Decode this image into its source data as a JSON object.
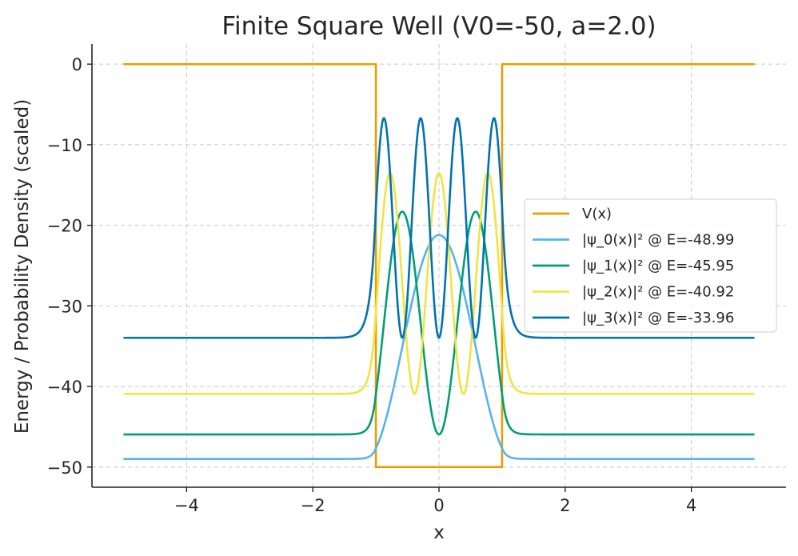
{
  "chart_data": {
    "type": "line",
    "title": "Finite Square Well (V0=-50, a=2.0)",
    "xlabel": "x",
    "ylabel": "Energy / Probability Density (scaled)",
    "xlim": [
      -5.5,
      5.5
    ],
    "ylim": [
      -52.5,
      2.5
    ],
    "xticks": [
      -4,
      -2,
      0,
      2,
      4
    ],
    "xtick_labels": [
      "−4",
      "−2",
      "0",
      "2",
      "4"
    ],
    "yticks": [
      0,
      -10,
      -20,
      -30,
      -40,
      -50
    ],
    "ytick_labels": [
      "0",
      "−10",
      "−20",
      "−30",
      "−40",
      "−50"
    ],
    "grid": true,
    "legend_position": "center-right",
    "x_domain": [
      -5,
      5
    ],
    "well": {
      "V0": -50,
      "a": 2.0
    },
    "series": [
      {
        "name": "V(x)",
        "kind": "potential",
        "color": "#E69F00",
        "points": [
          [
            -5,
            0
          ],
          [
            -1,
            0
          ],
          [
            -1,
            -50
          ],
          [
            1,
            -50
          ],
          [
            1,
            0
          ],
          [
            5,
            0
          ]
        ]
      },
      {
        "name": "|ψ_0(x)|² @ E=-48.99",
        "kind": "density",
        "n": 0,
        "energy": -48.99,
        "peak": -21.2,
        "color": "#56B4E9"
      },
      {
        "name": "|ψ_1(x)|² @ E=-45.95",
        "kind": "density",
        "n": 1,
        "energy": -45.95,
        "peak": -18.3,
        "color": "#009E73"
      },
      {
        "name": "|ψ_2(x)|² @ E=-40.92",
        "kind": "density",
        "n": 2,
        "energy": -40.92,
        "peak": -13.5,
        "color": "#F0E442"
      },
      {
        "name": "|ψ_3(x)|² @ E=-33.96",
        "kind": "density",
        "n": 3,
        "energy": -33.96,
        "peak": -6.7,
        "color": "#0072B2"
      }
    ]
  }
}
